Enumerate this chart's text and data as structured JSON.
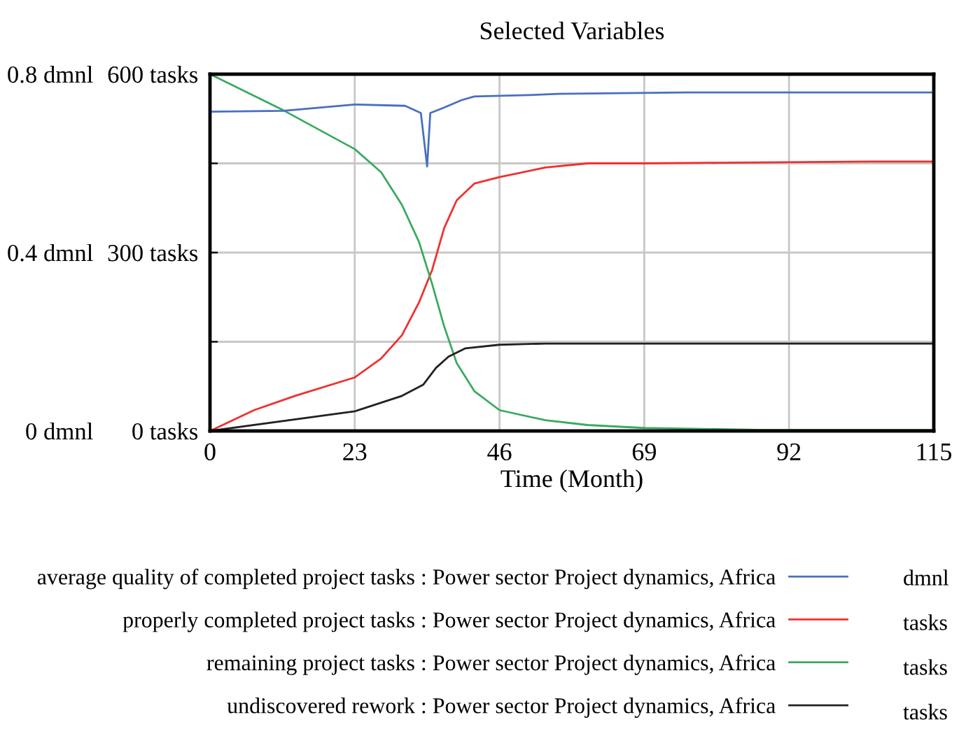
{
  "chart_data": {
    "type": "line",
    "title": "Selected Variables",
    "xlabel": "Time (Month)",
    "xlim": [
      0,
      115
    ],
    "xticks": [
      0,
      23,
      46,
      69,
      92,
      115
    ],
    "ylim": [
      0,
      600
    ],
    "yticks": [
      {
        "value": 0,
        "label": "0 tasks"
      },
      {
        "value": 150,
        "label": null
      },
      {
        "value": 300,
        "label": "300 tasks"
      },
      {
        "value": 450,
        "label": null
      },
      {
        "value": 600,
        "label": "600 tasks"
      }
    ],
    "y2lim": [
      0,
      0.8
    ],
    "y2ticks": [
      {
        "value": 0,
        "label": "0 dmnl"
      },
      {
        "value": 0.4,
        "label": "0.4 dmnl"
      },
      {
        "value": 0.8,
        "label": "0.8 dmnl"
      }
    ],
    "grid": true,
    "legend": "bottom",
    "annotations": [
      "dmnl",
      "tasks",
      "tasks",
      "tasks"
    ],
    "marker": "none",
    "line_style": "solid",
    "series": [
      {
        "name": "average quality of completed project tasks : Power sector Project dynamics, Africa",
        "axis": "y2",
        "color": "#4a6fc0",
        "x": [
          0,
          11.7,
          23,
          31,
          33.5,
          34.5,
          35,
          37,
          40,
          42,
          50.7,
          55.4,
          75.7,
          115
        ],
        "values": [
          0.716,
          0.718,
          0.732,
          0.729,
          0.713,
          0.593,
          0.713,
          0.724,
          0.742,
          0.75,
          0.753,
          0.756,
          0.759,
          0.759
        ]
      },
      {
        "name": "properly completed project tasks : Power sector Project dynamics, Africa",
        "color": "#f03030",
        "x": [
          0,
          7,
          13.5,
          23,
          27.2,
          30.5,
          33.2,
          35.3,
          37.2,
          39.2,
          42,
          46,
          53.3,
          60,
          69,
          81,
          105,
          115
        ],
        "values": [
          0,
          35,
          59,
          90,
          122,
          161,
          216,
          271,
          341,
          388,
          416,
          427,
          443,
          450,
          450,
          451,
          453,
          453
        ]
      },
      {
        "name": "remaining project tasks : Power sector Project dynamics, Africa",
        "color": "#3aaa60",
        "x": [
          0,
          11.7,
          23,
          27.2,
          30.5,
          33.2,
          35.3,
          37.2,
          39.2,
          42,
          46,
          53.3,
          60,
          69,
          87,
          115
        ],
        "values": [
          600,
          539,
          474,
          435,
          380,
          318,
          247,
          176,
          114,
          67,
          35,
          18,
          10,
          5,
          2,
          2
        ]
      },
      {
        "name": "undiscovered rework : Power sector Project dynamics, Africa",
        "color": "#222222",
        "x": [
          0,
          23,
          30.5,
          33.9,
          35.9,
          37.9,
          40.6,
          46,
          53.3,
          115
        ],
        "values": [
          0,
          33,
          59,
          78,
          106,
          125,
          139,
          145,
          147,
          147
        ]
      }
    ]
  }
}
